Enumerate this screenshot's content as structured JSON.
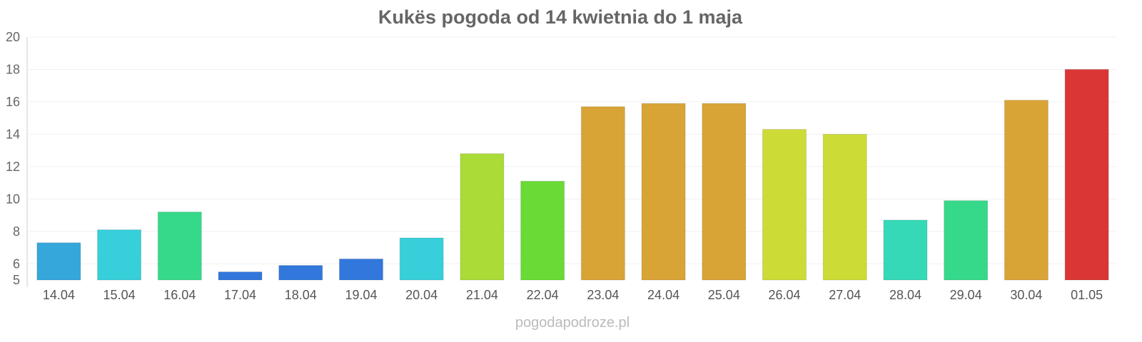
{
  "chart_data": {
    "type": "bar",
    "title": "Kukës pogoda od 14 kwietnia do 1 maja",
    "xlabel": "",
    "ylabel": "",
    "ylim": [
      5,
      20
    ],
    "yticks": [
      5,
      6,
      8,
      10,
      12,
      14,
      16,
      18,
      20
    ],
    "grid": true,
    "categories": [
      "14.04",
      "15.04",
      "16.04",
      "17.04",
      "18.04",
      "19.04",
      "20.04",
      "21.04",
      "22.04",
      "23.04",
      "24.04",
      "25.04",
      "26.04",
      "27.04",
      "28.04",
      "29.04",
      "30.04",
      "01.05"
    ],
    "values": [
      7.3,
      8.1,
      9.2,
      5.5,
      5.9,
      6.3,
      7.6,
      12.8,
      11.1,
      15.7,
      15.9,
      15.9,
      14.3,
      14.0,
      8.7,
      9.9,
      16.1,
      18.0
    ],
    "colors": [
      "#35a7da",
      "#36cfda",
      "#36d98a",
      "#3277db",
      "#3277db",
      "#3277db",
      "#36cfda",
      "#aadb36",
      "#6adb36",
      "#d9a436",
      "#d9a436",
      "#d9a436",
      "#cddb36",
      "#cddb36",
      "#35d9b8",
      "#36d98a",
      "#d9a436",
      "#db3636"
    ]
  },
  "footer": {
    "credit": "pogodapodroze.pl"
  }
}
